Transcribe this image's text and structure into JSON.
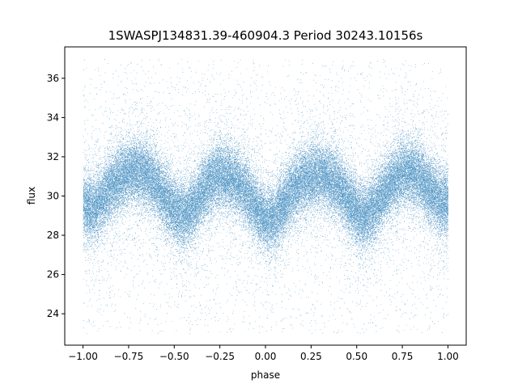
{
  "chart_data": {
    "type": "scatter",
    "title": "1SWASPJ134831.39-460904.3 Period 30243.10156s",
    "xlabel": "phase",
    "ylabel": "flux",
    "xlim": [
      -1.1,
      1.1
    ],
    "ylim": [
      22.4,
      37.6
    ],
    "xticks": [
      -1.0,
      -0.75,
      -0.5,
      -0.25,
      0.0,
      0.25,
      0.5,
      0.75,
      1.0
    ],
    "xtick_labels": [
      "−1.00",
      "−0.75",
      "−0.50",
      "−0.25",
      "0.00",
      "0.25",
      "0.50",
      "0.75",
      "1.00"
    ],
    "yticks": [
      24,
      26,
      28,
      30,
      32,
      34,
      36
    ],
    "ytick_labels": [
      "24",
      "26",
      "28",
      "30",
      "32",
      "34",
      "36"
    ],
    "grid": false,
    "marker_color": "#1f77b4",
    "trend": {
      "description": "folded light curve, ~2 cycles across phase -1 to 1",
      "phase": [
        -1.0,
        -0.95,
        -0.9,
        -0.85,
        -0.8,
        -0.75,
        -0.7,
        -0.65,
        -0.6,
        -0.55,
        -0.5,
        -0.45,
        -0.4,
        -0.35,
        -0.3,
        -0.25,
        -0.2,
        -0.15,
        -0.1,
        -0.05,
        0.0,
        0.05,
        0.1,
        0.15,
        0.2,
        0.25,
        0.3,
        0.35,
        0.4,
        0.45,
        0.5,
        0.55,
        0.6,
        0.65,
        0.7,
        0.75,
        0.8,
        0.85,
        0.9,
        0.95,
        1.0
      ],
      "flux": [
        29.6,
        29.3,
        29.8,
        30.4,
        30.9,
        31.2,
        31.3,
        31.1,
        30.6,
        29.9,
        29.3,
        29.0,
        29.4,
        30.1,
        30.8,
        31.1,
        31.0,
        30.7,
        30.1,
        29.3,
        28.8,
        28.9,
        29.6,
        30.3,
        30.8,
        31.0,
        31.1,
        30.9,
        30.5,
        29.8,
        29.2,
        29.0,
        29.5,
        30.2,
        30.8,
        31.2,
        31.2,
        30.9,
        30.3,
        29.8,
        29.6
      ],
      "spread": 1.6,
      "clip_range": [
        23.0,
        37.0
      ]
    },
    "n_points": 60000
  }
}
